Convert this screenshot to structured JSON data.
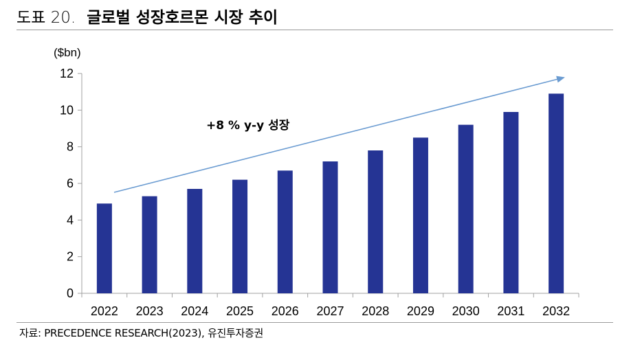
{
  "header": {
    "figure_label": "도표 20.",
    "title": "글로벌 성장호르몬 시장 추이"
  },
  "source": "자료: PRECEDENCE RESEARCH(2023), 유진투자증권",
  "colors": {
    "bar": "#253494",
    "arrow": "#6a9bd1",
    "axis": "#a0a0a0"
  },
  "chart_data": {
    "type": "bar",
    "title": "",
    "xlabel": "",
    "ylabel": "($bn)",
    "ylim": [
      0,
      12
    ],
    "yticks": [
      0,
      2,
      4,
      6,
      8,
      10,
      12
    ],
    "grid": false,
    "categories": [
      "2022",
      "2023",
      "2024",
      "2025",
      "2026",
      "2027",
      "2028",
      "2029",
      "2030",
      "2031",
      "2032"
    ],
    "values": [
      4.9,
      5.3,
      5.7,
      6.2,
      6.7,
      7.2,
      7.8,
      8.5,
      9.2,
      9.9,
      10.9
    ],
    "annotation": "+8 % y-y 성장"
  }
}
